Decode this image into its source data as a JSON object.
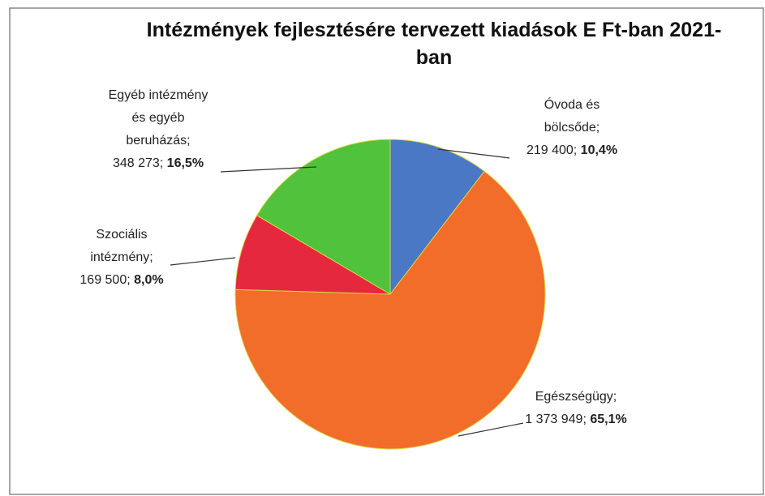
{
  "chart_data": {
    "type": "pie",
    "title": "Intézmények fejlesztésére tervezett kiadások E Ft-ban 2021-ban",
    "categories": [
      "Óvoda és bölcsőde;",
      "Egészségügy;",
      "Szociális intézmény;",
      "Egyéb intézmény és egyéb beruházás;"
    ],
    "values": [
      219400,
      1373949,
      169500,
      348273
    ],
    "value_labels": [
      "219 400;",
      "1 373 949;",
      "169 500;",
      "348 273;"
    ],
    "percentages": [
      10.4,
      65.1,
      8.0,
      16.5
    ],
    "percentage_labels": [
      "10,4%",
      "65,1%",
      "8,0%",
      "16,5%"
    ],
    "colors": [
      "#4a78c4",
      "#f26c2a",
      "#e6283f",
      "#50c23c"
    ]
  }
}
